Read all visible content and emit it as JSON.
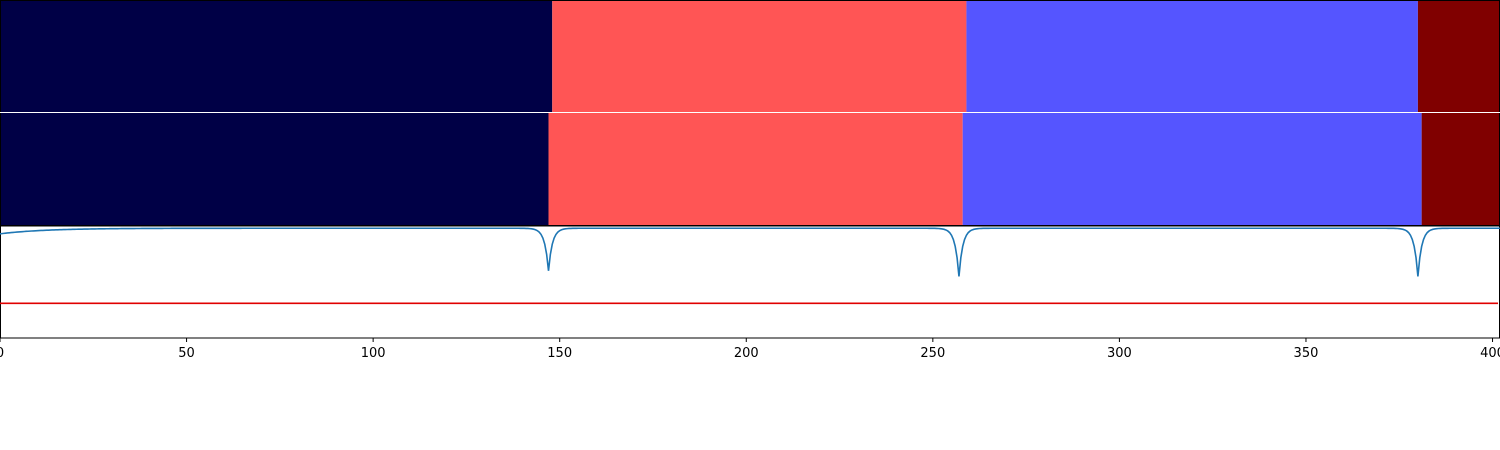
{
  "chart_data": [
    {
      "type": "segmentation-bar",
      "panel": "ground-truth",
      "xlim": [
        0,
        402
      ],
      "segments": [
        {
          "start": 0,
          "end": 148,
          "color": "#000046"
        },
        {
          "start": 148,
          "end": 259,
          "color": "#ff5555"
        },
        {
          "start": 259,
          "end": 380,
          "color": "#5555ff"
        },
        {
          "start": 380,
          "end": 402,
          "color": "#800000"
        }
      ]
    },
    {
      "type": "segmentation-bar",
      "panel": "prediction",
      "xlim": [
        0,
        402
      ],
      "segments": [
        {
          "start": 0,
          "end": 147,
          "color": "#000046"
        },
        {
          "start": 147,
          "end": 258,
          "color": "#ff5555"
        },
        {
          "start": 258,
          "end": 381,
          "color": "#5555ff"
        },
        {
          "start": 381,
          "end": 402,
          "color": "#800000"
        }
      ]
    },
    {
      "type": "line",
      "xlim": [
        0,
        402
      ],
      "ylim": [
        0,
        1
      ],
      "xticks": [
        0,
        50,
        100,
        150,
        200,
        250,
        300,
        350,
        400
      ],
      "baseline": 0.98,
      "dips": [
        {
          "x": 147,
          "depth": 0.38
        },
        {
          "x": 257,
          "depth": 0.43
        },
        {
          "x": 380,
          "depth": 0.43
        }
      ],
      "series": [
        {
          "color": "#1f77b4",
          "start_value": 0.93
        },
        {
          "color": "#e00000",
          "constant": 0.31
        }
      ]
    }
  ]
}
